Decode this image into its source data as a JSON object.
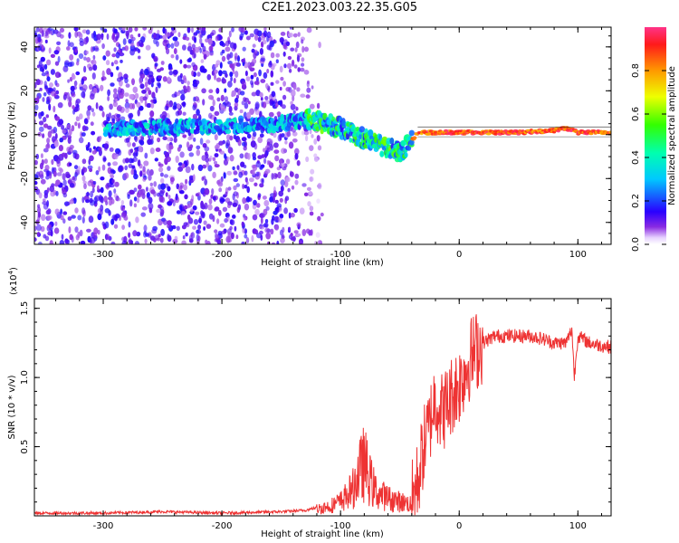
{
  "title": "C2E1.2023.003.22.35.G05",
  "top_panel": {
    "xlabel": "Height of straight line (km)",
    "ylabel": "Frequency (Hz)",
    "xticks": [
      "-300",
      "-200",
      "-100",
      "0",
      "100"
    ],
    "yticks": [
      "-40",
      "-20",
      "0",
      "20",
      "40"
    ],
    "colorbar_label": "Normalized spectral amplitude",
    "colorbar_ticks": [
      "0.0",
      "0.2",
      "0.4",
      "0.6",
      "0.8"
    ]
  },
  "bottom_panel": {
    "xlabel": "Height of straight line (km)",
    "ylabel": "SNR (10 * v/v)",
    "scale_label": "(x10",
    "scale_exp": "4",
    "scale_close": ")",
    "xticks": [
      "-300",
      "-200",
      "-100",
      "0",
      "100"
    ],
    "yticks": [
      "0.5",
      "1.0",
      "1.5"
    ],
    "line_color": "#ee3333"
  },
  "chart_data": [
    {
      "type": "heatmap",
      "title": "C2E1.2023.003.22.35.G05",
      "xlabel": "Height of straight line (km)",
      "ylabel": "Frequency (Hz)",
      "xlim": [
        -358,
        128
      ],
      "ylim": [
        -50,
        49
      ],
      "colorbar": {
        "label": "Normalized spectral amplitude",
        "range": [
          0,
          1
        ],
        "colormap": "rainbow"
      },
      "ridge": {
        "description_points": [
          [
            -280,
            3
          ],
          [
            -200,
            4
          ],
          [
            -150,
            5
          ],
          [
            -125,
            7
          ],
          [
            -100,
            3
          ],
          [
            -80,
            -2
          ],
          [
            -60,
            -6
          ],
          [
            -50,
            -8
          ],
          [
            -40,
            -3
          ],
          [
            -35,
            1
          ],
          [
            -25,
            1
          ],
          [
            0,
            1
          ],
          [
            50,
            1
          ],
          [
            80,
            2
          ],
          [
            90,
            3
          ],
          [
            100,
            1
          ],
          [
            128,
            1
          ]
        ]
      },
      "noise_region_x": [
        -358,
        -130
      ]
    },
    {
      "type": "line",
      "xlabel": "Height of straight line (km)",
      "ylabel": "SNR (10 * v/v)",
      "y_scale_factor": "x10^4",
      "xlim": [
        -358,
        128
      ],
      "ylim": [
        0,
        1.57
      ],
      "series": [
        {
          "color": "#ee3333",
          "x": [
            -358,
            -300,
            -250,
            -200,
            -150,
            -130,
            -110,
            -100,
            -90,
            -85,
            -80,
            -75,
            -70,
            -60,
            -50,
            -40,
            -35,
            -30,
            -25,
            -22,
            -20,
            -15,
            -10,
            -5,
            0,
            5,
            10,
            20,
            30,
            40,
            50,
            60,
            70,
            80,
            90,
            95,
            97,
            100,
            110,
            120,
            128
          ],
          "y": [
            0.02,
            0.02,
            0.03,
            0.02,
            0.03,
            0.04,
            0.08,
            0.12,
            0.22,
            0.35,
            0.45,
            0.3,
            0.2,
            0.15,
            0.12,
            0.1,
            0.25,
            0.5,
            0.65,
            0.8,
            0.85,
            0.75,
            0.8,
            0.9,
            0.95,
            1.05,
            1.15,
            1.25,
            1.3,
            1.3,
            1.3,
            1.3,
            1.28,
            1.25,
            1.25,
            1.35,
            1.0,
            1.3,
            1.25,
            1.23,
            1.22
          ]
        }
      ]
    }
  ]
}
